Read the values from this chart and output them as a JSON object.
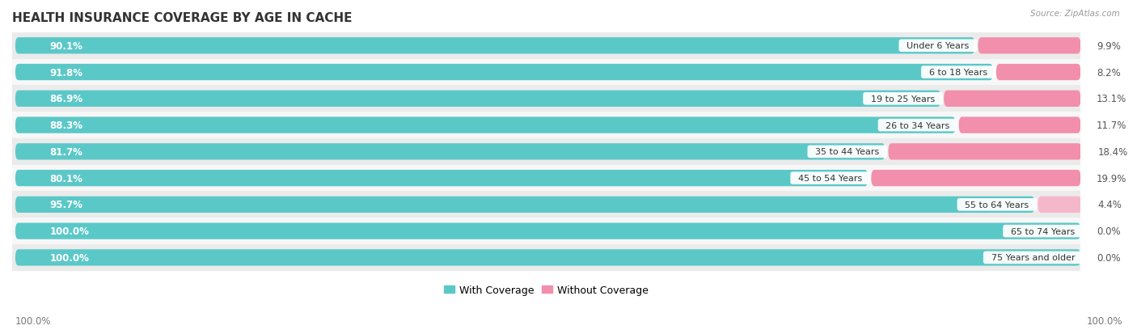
{
  "title": "HEALTH INSURANCE COVERAGE BY AGE IN CACHE",
  "source": "Source: ZipAtlas.com",
  "categories": [
    "Under 6 Years",
    "6 to 18 Years",
    "19 to 25 Years",
    "26 to 34 Years",
    "35 to 44 Years",
    "45 to 54 Years",
    "55 to 64 Years",
    "65 to 74 Years",
    "75 Years and older"
  ],
  "with_coverage": [
    90.1,
    91.8,
    86.9,
    88.3,
    81.7,
    80.1,
    95.7,
    100.0,
    100.0
  ],
  "without_coverage": [
    9.9,
    8.2,
    13.1,
    11.7,
    18.4,
    19.9,
    4.4,
    0.0,
    0.0
  ],
  "color_with": "#5BC8C8",
  "color_without": "#F28FAD",
  "color_without_light": "#F5B8CA",
  "row_colors": [
    "#EBEBEB",
    "#F7F7F7"
  ],
  "bar_height": 0.62,
  "title_fontsize": 11,
  "label_fontsize": 8.5,
  "tick_fontsize": 8.5,
  "legend_fontsize": 9,
  "value_label_color_left": "#FFFFFF",
  "value_label_color_right": "#555555",
  "cat_label_color": "#333333"
}
